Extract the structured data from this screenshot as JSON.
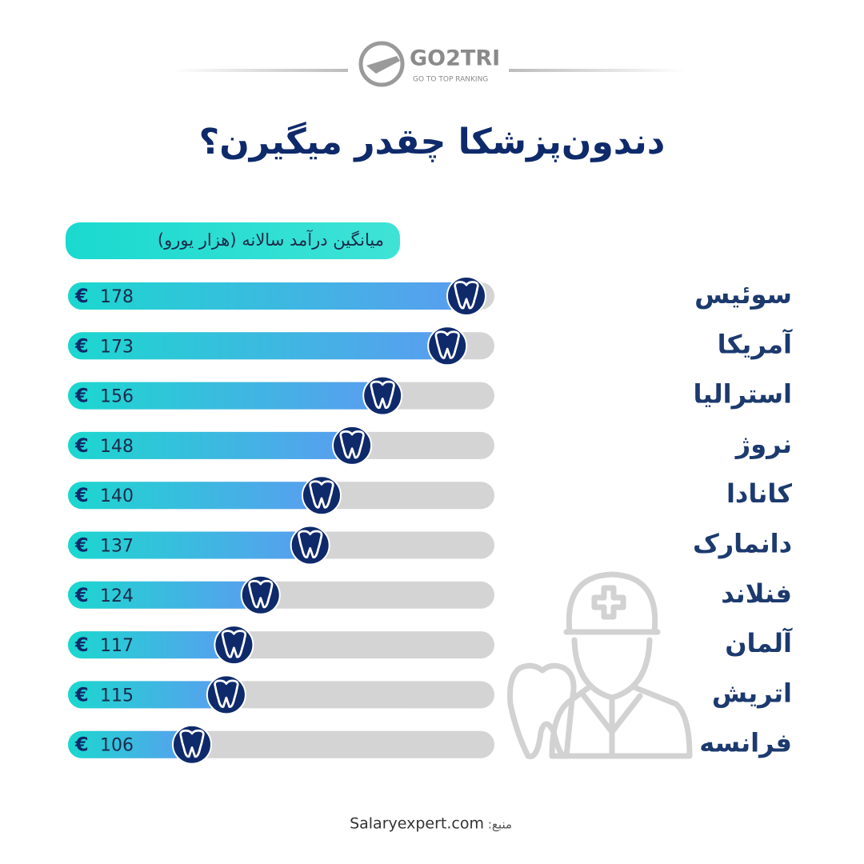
{
  "logo": {
    "name": "GO2TRI",
    "tagline": "GO TO TOP RANKING"
  },
  "chart_data": {
    "type": "bar",
    "orientation": "horizontal",
    "title": "دندون‌پزشکا چقدر میگیرن؟",
    "subtitle": "میانگین درآمد سالانه (هزار یورو)",
    "currency_symbol": "€",
    "categories": [
      "سوئیس",
      "آمریکا",
      "استرالیا",
      "نروژ",
      "کانادا",
      "دانمارک",
      "فنلاند",
      "آلمان",
      "اتریش",
      "فرانسه"
    ],
    "values": [
      178,
      173,
      156,
      148,
      140,
      137,
      124,
      117,
      115,
      106
    ],
    "color_start": "#1bd8cf",
    "color_end": "#5a9df0",
    "track_color": "#d4d4d4",
    "marker_color": "#0f2a6b"
  },
  "source": {
    "label": "منبع:",
    "text": "Salaryexpert.com"
  }
}
